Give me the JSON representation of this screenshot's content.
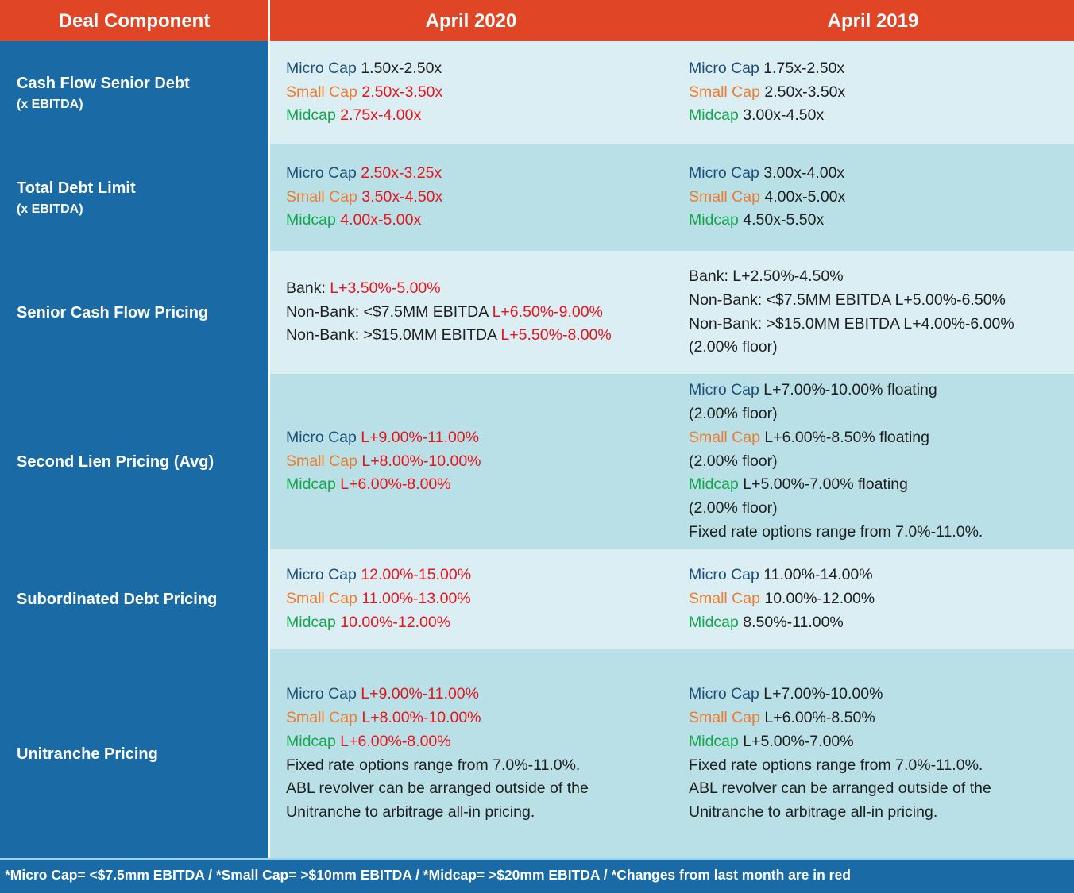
{
  "header": {
    "col0": "Deal Component",
    "col1": "April 2020",
    "col2": "April 2019"
  },
  "colors": {
    "header_bg": "#e04525",
    "label_bg": "#1a6aa6",
    "row_light": "#daeef4",
    "row_dark": "#b9e0e7",
    "micro_cap": "#1f4e79",
    "small_cap": "#f07b2a",
    "midcap": "#12a84a",
    "changed": "#e8141b"
  },
  "rows": [
    {
      "label": "Cash Flow Senior Debt",
      "sub": "(x EBITDA)",
      "apr2020": [
        [
          {
            "t": "Micro Cap",
            "c": "micro"
          },
          {
            "t": " 1.50x-2.50x",
            "c": "black"
          }
        ],
        [
          {
            "t": "Small Cap",
            "c": "small"
          },
          {
            "t": " 2.50x-3.50x",
            "c": "red"
          }
        ],
        [
          {
            "t": "Midcap",
            "c": "mid"
          },
          {
            "t": " 2.75x-4.00x",
            "c": "red"
          }
        ]
      ],
      "apr2019": [
        [
          {
            "t": "Micro Cap",
            "c": "micro"
          },
          {
            "t": " 1.75x-2.50x",
            "c": "black"
          }
        ],
        [
          {
            "t": "Small Cap",
            "c": "small"
          },
          {
            "t": " 2.50x-3.50x",
            "c": "black"
          }
        ],
        [
          {
            "t": "Midcap",
            "c": "mid"
          },
          {
            "t": " 3.00x-4.50x",
            "c": "black"
          }
        ]
      ]
    },
    {
      "label": "Total Debt Limit",
      "sub": "(x EBITDA)",
      "apr2020": [
        [
          {
            "t": "Micro Cap",
            "c": "micro"
          },
          {
            "t": " 2.50x-3.25x",
            "c": "red"
          }
        ],
        [
          {
            "t": "Small Cap",
            "c": "small"
          },
          {
            "t": " 3.50x-4.50x",
            "c": "red"
          }
        ],
        [
          {
            "t": "Midcap",
            "c": "mid"
          },
          {
            "t": " 4.00x-5.00x",
            "c": "red"
          }
        ]
      ],
      "apr2019": [
        [
          {
            "t": "Micro Cap",
            "c": "micro"
          },
          {
            "t": " 3.00x-4.00x",
            "c": "black"
          }
        ],
        [
          {
            "t": "Small Cap",
            "c": "small"
          },
          {
            "t": " 4.00x-5.00x",
            "c": "black"
          }
        ],
        [
          {
            "t": "Midcap",
            "c": "mid"
          },
          {
            "t": " 4.50x-5.50x",
            "c": "black"
          }
        ]
      ]
    },
    {
      "label": "Senior Cash Flow Pricing",
      "sub": "",
      "apr2020": [
        [
          {
            "t": "Bank: ",
            "c": "black"
          },
          {
            "t": "L+3.50%-5.00%",
            "c": "red"
          }
        ],
        [
          {
            "t": "Non-Bank: <$7.5MM EBITDA ",
            "c": "black"
          },
          {
            "t": "L+6.50%-9.00%",
            "c": "red"
          }
        ],
        [
          {
            "t": "Non-Bank: >$15.0MM EBITDA ",
            "c": "black"
          },
          {
            "t": "L+5.50%-8.00%",
            "c": "red"
          }
        ]
      ],
      "apr2019": [
        [
          {
            "t": "Bank: L+2.50%-4.50%",
            "c": "black"
          }
        ],
        [
          {
            "t": "Non-Bank: <$7.5MM EBITDA L+5.00%-6.50%",
            "c": "black"
          }
        ],
        [
          {
            "t": "Non-Bank: >$15.0MM EBITDA L+4.00%-6.00%",
            "c": "black"
          }
        ],
        [
          {
            "t": "(2.00% floor)",
            "c": "black"
          }
        ]
      ]
    },
    {
      "label": "Second Lien Pricing (Avg)",
      "sub": "",
      "apr2020": [
        [
          {
            "t": "Micro Cap",
            "c": "micro"
          },
          {
            "t": " L+9.00%-11.00%",
            "c": "red"
          }
        ],
        [
          {
            "t": "Small Cap",
            "c": "small"
          },
          {
            "t": " L+8.00%-10.00%",
            "c": "red"
          }
        ],
        [
          {
            "t": "Midcap",
            "c": "mid"
          },
          {
            "t": " L+6.00%-8.00%",
            "c": "red"
          }
        ]
      ],
      "apr2019": [
        [
          {
            "t": "Micro Cap",
            "c": "micro"
          },
          {
            "t": " L+7.00%-10.00% floating",
            "c": "black"
          }
        ],
        [
          {
            "t": "(2.00% floor)",
            "c": "black"
          }
        ],
        [
          {
            "t": "Small Cap",
            "c": "small"
          },
          {
            "t": " L+6.00%-8.50% floating",
            "c": "black"
          }
        ],
        [
          {
            "t": "(2.00% floor)",
            "c": "black"
          }
        ],
        [
          {
            "t": "Midcap",
            "c": "mid"
          },
          {
            "t": " L+5.00%-7.00% floating",
            "c": "black"
          }
        ],
        [
          {
            "t": "(2.00% floor)",
            "c": "black"
          }
        ],
        [
          {
            "t": "Fixed rate options range from 7.0%-11.0%.",
            "c": "black"
          }
        ]
      ]
    },
    {
      "label": "Subordinated Debt Pricing",
      "sub": "",
      "apr2020": [
        [
          {
            "t": "Micro Cap",
            "c": "micro"
          },
          {
            "t": " 12.00%-15.00%",
            "c": "red"
          }
        ],
        [
          {
            "t": "Small Cap",
            "c": "small"
          },
          {
            "t": " 11.00%-13.00%",
            "c": "red"
          }
        ],
        [
          {
            "t": "Midcap",
            "c": "mid"
          },
          {
            "t": " 10.00%-12.00%",
            "c": "red"
          }
        ]
      ],
      "apr2019": [
        [
          {
            "t": "Micro Cap",
            "c": "micro"
          },
          {
            "t": " 11.00%-14.00%",
            "c": "black"
          }
        ],
        [
          {
            "t": "Small Cap",
            "c": "small"
          },
          {
            "t": " 10.00%-12.00%",
            "c": "black"
          }
        ],
        [
          {
            "t": "Midcap",
            "c": "mid"
          },
          {
            "t": " 8.50%-11.00%",
            "c": "black"
          }
        ]
      ]
    },
    {
      "label": "Unitranche Pricing",
      "sub": "",
      "apr2020": [
        [
          {
            "t": "Micro Cap",
            "c": "micro"
          },
          {
            "t": " L+9.00%-11.00%",
            "c": "red"
          }
        ],
        [
          {
            "t": "Small Cap",
            "c": "small"
          },
          {
            "t": " L+8.00%-10.00%",
            "c": "red"
          }
        ],
        [
          {
            "t": "Midcap",
            "c": "mid"
          },
          {
            "t": " L+6.00%-8.00%",
            "c": "red"
          }
        ],
        [
          {
            "t": "Fixed rate options range from 7.0%-11.0%.",
            "c": "black"
          }
        ],
        [
          {
            "t": "ABL revolver can be arranged outside of the",
            "c": "black"
          }
        ],
        [
          {
            "t": "Unitranche to arbitrage all-in pricing.",
            "c": "black"
          }
        ]
      ],
      "apr2019": [
        [
          {
            "t": "Micro Cap",
            "c": "micro"
          },
          {
            "t": " L+7.00%-10.00%",
            "c": "black"
          }
        ],
        [
          {
            "t": "Small Cap",
            "c": "small"
          },
          {
            "t": " L+6.00%-8.50%",
            "c": "black"
          }
        ],
        [
          {
            "t": "Midcap",
            "c": "mid"
          },
          {
            "t": " L+5.00%-7.00%",
            "c": "black"
          }
        ],
        [
          {
            "t": "Fixed rate options range from 7.0%-11.0%.",
            "c": "black"
          }
        ],
        [
          {
            "t": "ABL revolver can be arranged outside of the",
            "c": "black"
          }
        ],
        [
          {
            "t": "Unitranche to arbitrage all-in pricing.",
            "c": "black"
          }
        ]
      ]
    }
  ],
  "footer": "*Micro Cap= <$7.5mm EBITDA / *Small Cap= >$10mm EBITDA / *Midcap= >$20mm EBITDA / *Changes from last month are in red"
}
